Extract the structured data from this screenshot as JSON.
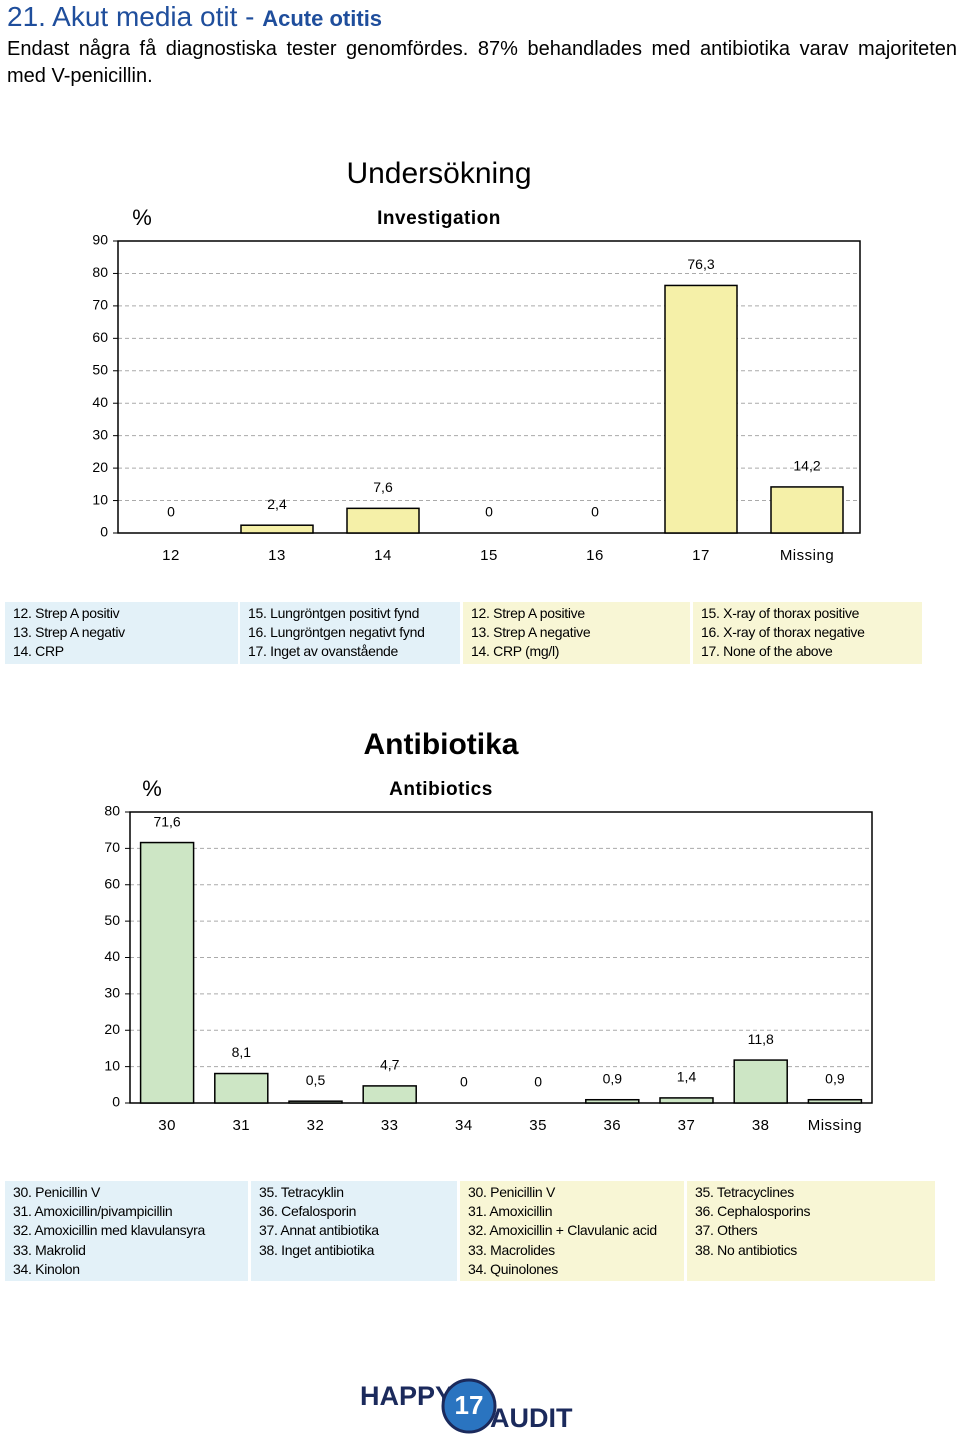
{
  "header": {
    "title": "21. Akut media otit - ",
    "title_en": "Acute otitis",
    "text": "Endast några få diagnostiska tester genomfördes. 87% behandlades med antibiotika varav majoriteten med V-penicillin."
  },
  "chart_data": [
    {
      "type": "bar",
      "title": "Undersökning",
      "subtitle": "Investigation",
      "y_label": "%",
      "categories": [
        "12",
        "13",
        "14",
        "15",
        "16",
        "17",
        "Missing"
      ],
      "values": [
        0,
        2.4,
        7.6,
        0,
        0,
        76.3,
        14.2
      ],
      "value_labels": [
        "0",
        "2,4",
        "7,6",
        "0",
        "0",
        "76,3",
        "14,2"
      ],
      "color": "#f5f0a8",
      "ylim": [
        0,
        90
      ],
      "yticks": [
        0,
        10,
        20,
        30,
        40,
        50,
        60,
        70,
        80,
        90
      ],
      "grid": true
    },
    {
      "type": "bar",
      "title": "Antibiotika",
      "subtitle": "Antibiotics",
      "y_label": "%",
      "categories": [
        "30",
        "31",
        "32",
        "33",
        "34",
        "35",
        "36",
        "37",
        "38",
        "Missing"
      ],
      "values": [
        71.6,
        8.1,
        0.5,
        4.7,
        0,
        0,
        0.9,
        1.4,
        11.8,
        0.9
      ],
      "value_labels": [
        "71,6",
        "8,1",
        "0,5",
        "4,7",
        "0",
        "0",
        "0,9",
        "1,4",
        "11,8",
        "0,9"
      ],
      "color": "#cde6c5",
      "ylim": [
        0,
        80
      ],
      "yticks": [
        0,
        10,
        20,
        30,
        40,
        50,
        60,
        70,
        80
      ],
      "grid": true
    }
  ],
  "legends": [
    [
      [
        "12. Strep A positiv",
        "13. Strep A negativ",
        "14. CRP"
      ],
      [
        "15. Lungröntgen positivt fynd",
        "16. Lungröntgen negativt fynd",
        "17. Inget av ovanstående"
      ],
      [
        "12. Strep A positive",
        "13. Strep A negative",
        "14. CRP (mg/l)"
      ],
      [
        "15. X-ray of thorax positive",
        "16. X-ray of thorax negative",
        "17. None of the above"
      ]
    ],
    [
      [
        "30. Penicillin V",
        "31. Amoxicillin/pivampicillin",
        "32. Amoxicillin med klavulansyra",
        "33. Makrolid",
        "34. Kinolon"
      ],
      [
        "35. Tetracyklin",
        "36. Cefalosporin",
        "37. Annat antibiotika",
        "38. Inget antibiotika"
      ],
      [
        "30. Penicillin V",
        "31. Amoxicillin",
        "32. Amoxicillin + Clavulanic acid",
        "33. Macrolides",
        "34. Quinolones"
      ],
      [
        "35. Tetracyclines",
        "36. Cephalosporins",
        "37. Others",
        "38. No antibiotics"
      ]
    ]
  ],
  "logo": {
    "left": "HAPPY",
    "number": "17",
    "right": "AUDIT"
  }
}
